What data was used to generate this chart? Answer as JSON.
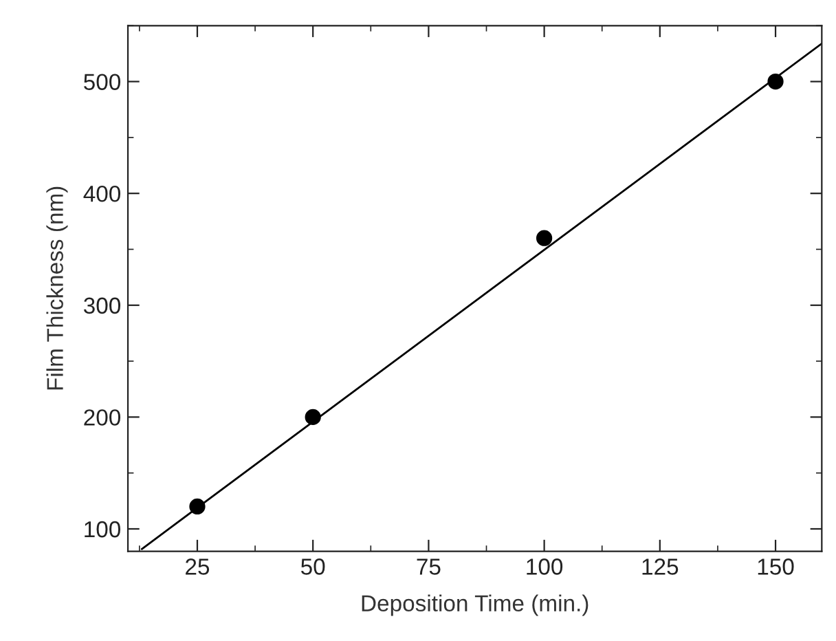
{
  "chart_data": {
    "type": "scatter",
    "xlabel": "Deposition Time (min.)",
    "ylabel": "Film Thickness (nm)",
    "series": [
      {
        "color": "#000000",
        "marker": "circle",
        "x": [
          25,
          50,
          100,
          150
        ],
        "values": [
          120,
          200,
          360,
          500
        ]
      },
      {
        "type": "line",
        "color": "#000000",
        "marker": "none",
        "line_style": "solid",
        "x": [
          13,
          160
        ],
        "values": [
          82,
          534
        ]
      }
    ],
    "xlim": [
      10,
      160
    ],
    "ylim": [
      80,
      550
    ],
    "xticks": [
      {
        "value": 12.5,
        "label": null
      },
      25,
      {
        "value": 37.5,
        "label": null
      },
      50,
      {
        "value": 62.5,
        "label": null
      },
      75,
      {
        "value": 87.5,
        "label": null
      },
      100,
      {
        "value": 112.5,
        "label": null
      },
      125,
      {
        "value": 137.5,
        "label": null
      },
      150
    ],
    "yticks": [
      100,
      {
        "value": 150,
        "label": null
      },
      200,
      {
        "value": 250,
        "label": null
      },
      300,
      {
        "value": 350,
        "label": null
      },
      400,
      {
        "value": 450,
        "label": null
      },
      500,
      {
        "value": 550,
        "label": null
      }
    ],
    "grid": false,
    "legend": false
  }
}
